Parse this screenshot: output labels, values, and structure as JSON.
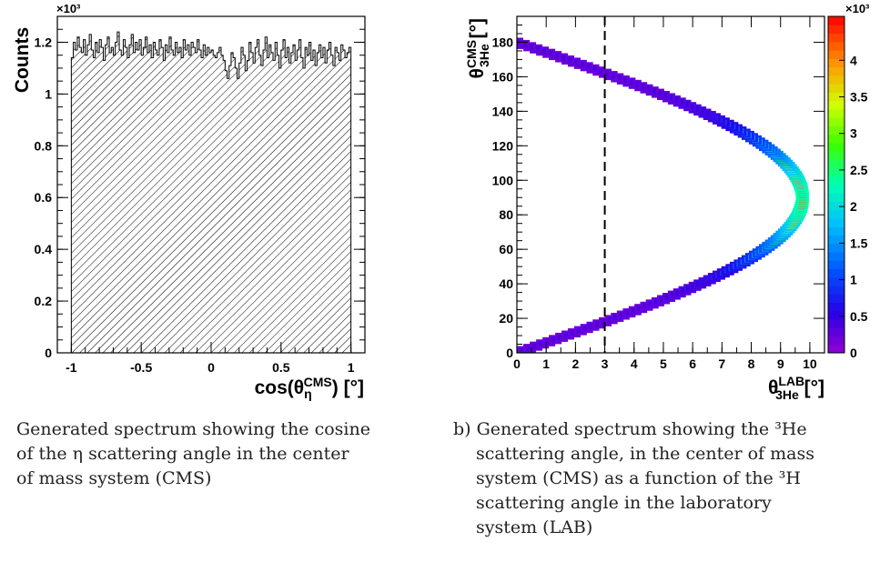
{
  "chart_data": [
    {
      "type": "histogram",
      "exponent_label": "×10³",
      "ylabel": "Counts",
      "xlabel": "cos(θη CMS) [°]",
      "xlabel_main": "cos(θ",
      "xlabel_sub": "η",
      "xlabel_sup": "CMS",
      "xlabel_tail": ") [°]",
      "xlim": [
        -1.1,
        1.1
      ],
      "ylim": [
        0,
        1.3
      ],
      "xticks": [
        "-1",
        "-0.5",
        "0",
        "0.5",
        "1"
      ],
      "xtick_values": [
        -1,
        -0.5,
        0,
        0.5,
        1
      ],
      "yticks": [
        "0",
        "0.2",
        "0.4",
        "0.6",
        "0.8",
        "1",
        "1.2"
      ],
      "ytick_values": [
        0,
        0.2,
        0.4,
        0.6,
        0.8,
        1.0,
        1.2
      ],
      "bin_range": [
        -1,
        1
      ],
      "values": [
        1.14,
        1.2,
        1.17,
        1.22,
        1.18,
        1.16,
        1.21,
        1.15,
        1.19,
        1.23,
        1.17,
        1.14,
        1.2,
        1.16,
        1.21,
        1.18,
        1.13,
        1.19,
        1.22,
        1.16,
        1.18,
        1.15,
        1.2,
        1.24,
        1.17,
        1.15,
        1.21,
        1.18,
        1.14,
        1.19,
        1.23,
        1.16,
        1.2,
        1.17,
        1.21,
        1.15,
        1.18,
        1.22,
        1.16,
        1.19,
        1.14,
        1.2,
        1.17,
        1.15,
        1.21,
        1.18,
        1.13,
        1.19,
        1.16,
        1.22,
        1.17,
        1.15,
        1.2,
        1.16,
        1.18,
        1.14,
        1.21,
        1.17,
        1.19,
        1.15,
        1.2,
        1.18,
        1.16,
        1.21,
        1.17,
        1.14,
        1.19,
        1.15,
        1.18,
        1.16,
        1.17,
        1.15,
        1.14,
        1.16,
        1.18,
        1.15,
        1.13,
        1.09,
        1.06,
        1.11,
        1.16,
        1.14,
        1.1,
        1.06,
        1.12,
        1.18,
        1.15,
        1.09,
        1.13,
        1.2,
        1.16,
        1.12,
        1.18,
        1.21,
        1.15,
        1.11,
        1.17,
        1.22,
        1.14,
        1.19,
        1.16,
        1.13,
        1.2,
        1.15,
        1.1,
        1.17,
        1.21,
        1.14,
        1.18,
        1.12,
        1.16,
        1.19,
        1.13,
        1.17,
        1.21,
        1.14,
        1.1,
        1.18,
        1.15,
        1.2,
        1.13,
        1.17,
        1.11,
        1.16,
        1.19,
        1.14,
        1.18,
        1.12,
        1.17,
        1.2,
        1.15,
        1.11,
        1.18,
        1.16,
        1.13,
        1.19,
        1.17,
        1.14,
        1.16,
        1.18
      ]
    },
    {
      "type": "heatmap",
      "exponent_label": "×10³",
      "ylabel": "θ 3He CMS [°]",
      "ylabel_main": "θ",
      "ylabel_sup": "CMS",
      "ylabel_sub": "3He",
      "ylabel_tail": " [°]",
      "xlabel": "θ 3He LAB [°]",
      "xlabel_main": "θ",
      "xlabel_sup": "LAB",
      "xlabel_sub": "3He",
      "xlabel_tail": " [°]",
      "xlim": [
        0,
        10.5
      ],
      "ylim": [
        0,
        195
      ],
      "xticks": [
        "0",
        "1",
        "2",
        "3",
        "4",
        "5",
        "6",
        "7",
        "8",
        "9",
        "10"
      ],
      "xtick_values": [
        0,
        1,
        2,
        3,
        4,
        5,
        6,
        7,
        8,
        9,
        10
      ],
      "yticks": [
        "0",
        "20",
        "40",
        "60",
        "80",
        "100",
        "120",
        "140",
        "160",
        "180"
      ],
      "ytick_values": [
        0,
        20,
        40,
        60,
        80,
        100,
        120,
        140,
        160,
        180
      ],
      "colorbar_ticks": [
        "0",
        "0.5",
        "1",
        "1.5",
        "2",
        "2.5",
        "3",
        "3.5",
        "4"
      ],
      "colorbar_values": [
        0,
        0.5,
        1,
        1.5,
        2,
        2.5,
        3,
        3.5,
        4
      ],
      "zlim": [
        0,
        4.6
      ],
      "cut_line_x": 3,
      "max_lab_angle": 9.75,
      "cms_angle_range": [
        0,
        180
      ]
    }
  ],
  "captions": {
    "a": {
      "label": "",
      "lines": [
        "Generated spectrum showing the cosine",
        "of the η scattering angle in the center",
        "of mass system (CMS)"
      ]
    },
    "b": {
      "label": "b)",
      "lines": [
        "Generated spectrum showing the ³He",
        "scattering angle, in the center of mass",
        "system (CMS) as a function of the ³H",
        "scattering angle in the laboratory",
        "system (LAB)"
      ]
    }
  }
}
